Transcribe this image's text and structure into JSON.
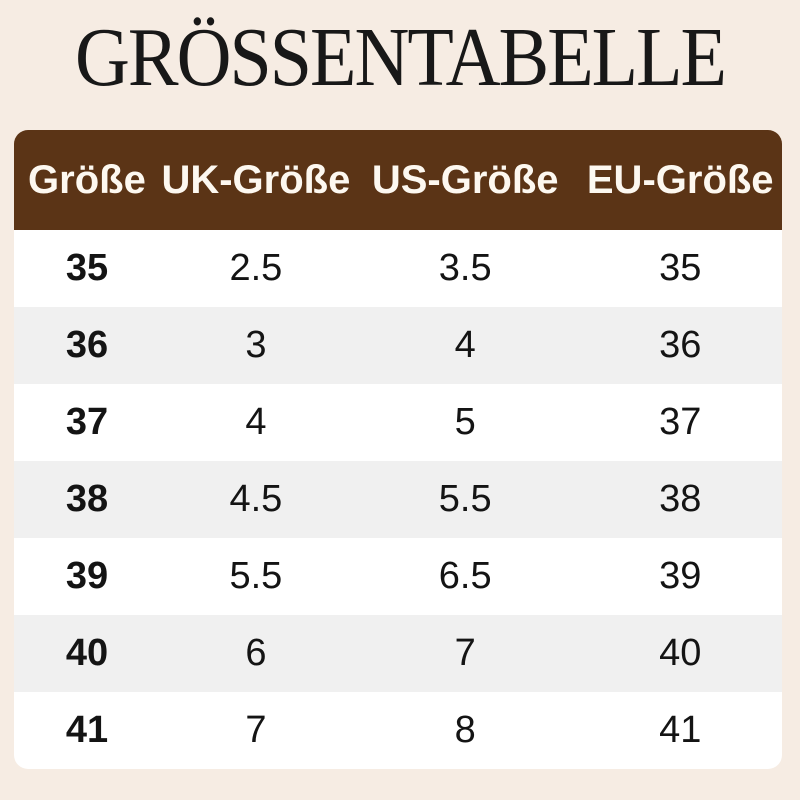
{
  "title": "GRÖSSENTABELLE",
  "colors": {
    "page_background": "#f6ece3",
    "header_background": "#5b3416",
    "header_text": "#fdf8f0",
    "row_background": "#ffffff",
    "row_alt_background": "#f0f0f0",
    "body_text": "#141414",
    "title_text": "#181818"
  },
  "chart_data": {
    "type": "table",
    "title": "GRÖSSENTABELLE",
    "columns": [
      "Größe",
      "UK-Größe",
      "US-Größe",
      "EU-Größe"
    ],
    "rows": [
      [
        "35",
        "2.5",
        "3.5",
        "35"
      ],
      [
        "36",
        "3",
        "4",
        "36"
      ],
      [
        "37",
        "4",
        "5",
        "37"
      ],
      [
        "38",
        "4.5",
        "5.5",
        "38"
      ],
      [
        "39",
        "5.5",
        "6.5",
        "39"
      ],
      [
        "40",
        "6",
        "7",
        "40"
      ],
      [
        "41",
        "7",
        "8",
        "41"
      ]
    ]
  }
}
